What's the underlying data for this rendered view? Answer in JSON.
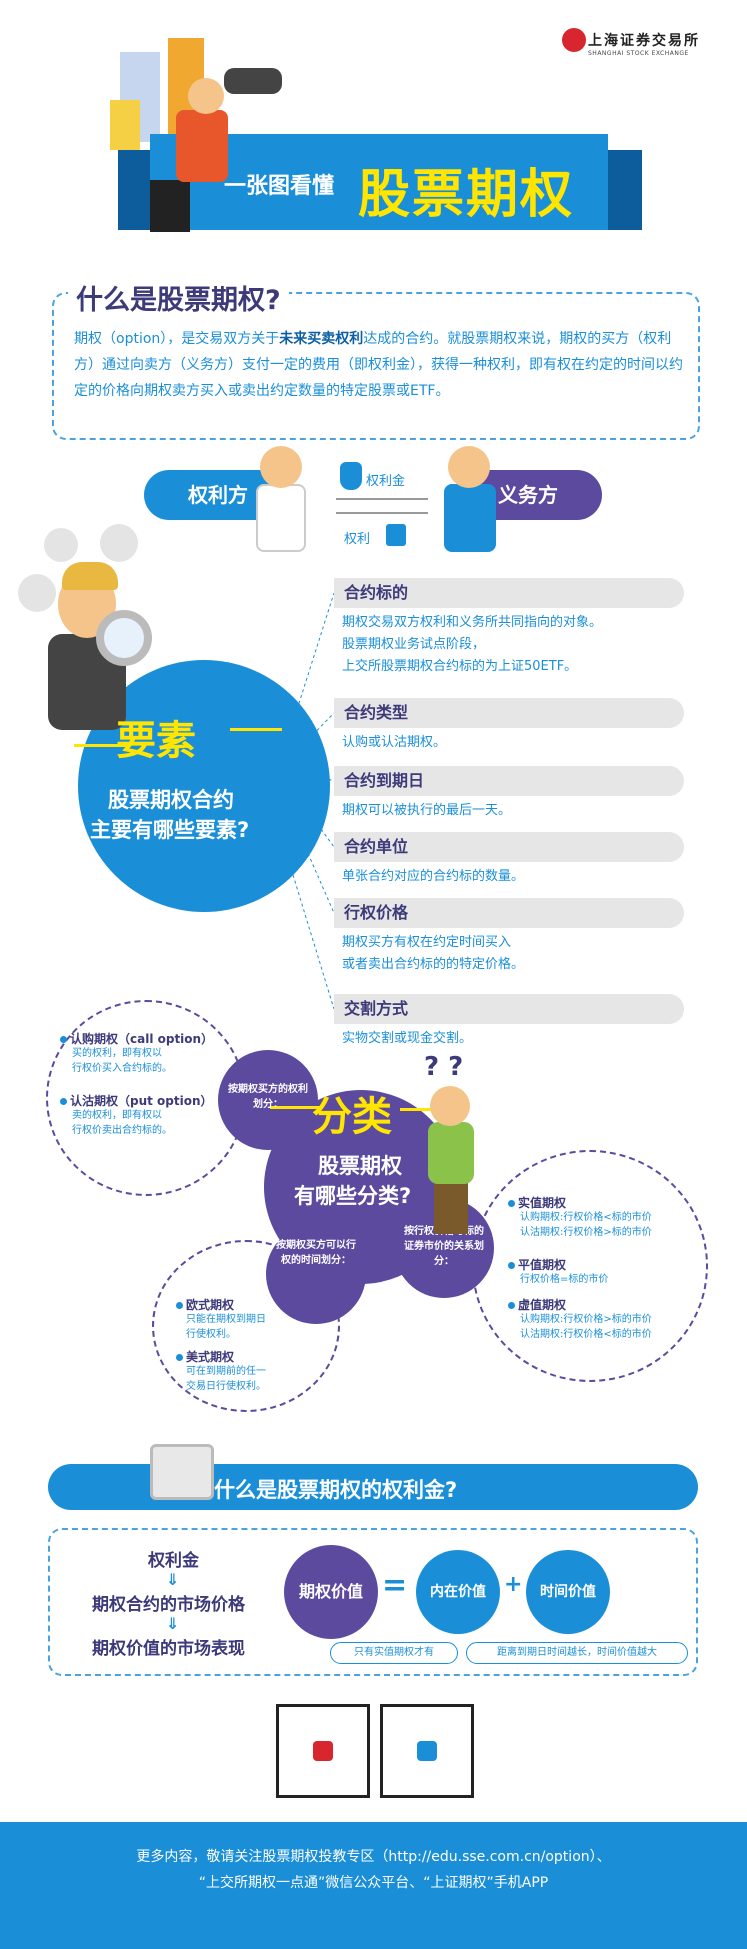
{
  "header": {
    "logo_text": "上海证券交易所",
    "logo_sub": "SHANGHAI STOCK EXCHANGE",
    "banner_small": "一张图看懂",
    "banner_big": "股票期权"
  },
  "what_is": {
    "title": "什么是股票期权?",
    "desc_1": "期权（option），是交易双方关于",
    "desc_b1": "未来买卖权利",
    "desc_2": "达成的合约。就股票期权来说，期权的买方（权利方）通过向卖方（义务方）支付一定的费用（即权利金），获得一种权利，即有权在约定的时间以约定的价格向期权卖方买入或卖出约定数量的特定股票或ETF。",
    "holder": "权利方",
    "writer": "义务方",
    "premium": "权利金",
    "right": "权利"
  },
  "elements": {
    "big": "要素",
    "q1": "股票期权合约",
    "q2": "主要有哪些要素?",
    "items": [
      {
        "title": "合约标的",
        "lines": [
          "期权交易双方权利和义务所共同指向的对象。",
          "股票期权业务试点阶段，",
          "上交所股票期权合约标的为上证50ETF。"
        ]
      },
      {
        "title": "合约类型",
        "lines": [
          "认购或认沽期权。"
        ]
      },
      {
        "title": "合约到期日",
        "lines": [
          "期权可以被执行的最后一天。"
        ]
      },
      {
        "title": "合约单位",
        "lines": [
          "单张合约对应的合约标的数量。"
        ]
      },
      {
        "title": "行权价格",
        "lines": [
          "期权买方有权在约定时间买入",
          "或者卖出合约标的的特定价格。"
        ]
      },
      {
        "title": "交割方式",
        "lines": [
          "实物交割或现金交割。"
        ]
      }
    ]
  },
  "classify": {
    "big": "分类",
    "q1": "股票期权",
    "q2": "有哪些分类?",
    "qmarks": "? ?",
    "by_right": "按期权买方的权利划分：",
    "by_time": "按期权买方可以行权的时间划分：",
    "by_price": "按行权价格与标的证券市价的关系划分：",
    "call_h": "认购期权（call option）",
    "call_d": [
      "买的权利，即有权以",
      "行权价买入合约标的。"
    ],
    "put_h": "认沽期权（put option）",
    "put_d": [
      "卖的权利，即有权以",
      "行权价卖出合约标的。"
    ],
    "euro_h": "欧式期权",
    "euro_d": [
      "只能在期权到期日",
      "行使权利。"
    ],
    "amer_h": "美式期权",
    "amer_d": [
      "可在到期前的任一",
      "交易日行使权利。"
    ],
    "itm_h": "实值期权",
    "itm_d": [
      "认购期权:行权价格<标的市价",
      "认沽期权:行权价格>标的市价"
    ],
    "atm_h": "平值期权",
    "atm_d": [
      "行权价格=标的市价"
    ],
    "otm_h": "虚值期权",
    "otm_d": [
      "认购期权:行权价格>标的市价",
      "认沽期权:行权价格<标的市价"
    ]
  },
  "premium": {
    "title": "什么是股票期权的权利金?",
    "l1": "权利金",
    "l2": "期权合约的市场价格",
    "l3": "期权价值的市场表现",
    "value": "期权价值",
    "eq": "=",
    "intrinsic": "内在价值",
    "plus": "+",
    "time": "时间价值",
    "note1": "只有实值期权才有",
    "note2": "距离到期日时间越长，时间价值越大"
  },
  "footer": {
    "line1": "更多内容，敬请关注股票期权投教专区（http://edu.sse.com.cn/option）、",
    "line2": "“上交所期权一点通”微信公众平台、“上证期权”手机APP"
  },
  "colors": {
    "blue": "#1a8fd8",
    "purple": "#5b4a9e",
    "yellow": "#ffe500",
    "red": "#d8262e"
  },
  "icons": [
    "logo-icon",
    "money-bag-icon",
    "contract-icon",
    "chart-icon",
    "head-icon",
    "cycle-icon",
    "magnifier-icon",
    "computer-icon",
    "qr-code-icon"
  ]
}
